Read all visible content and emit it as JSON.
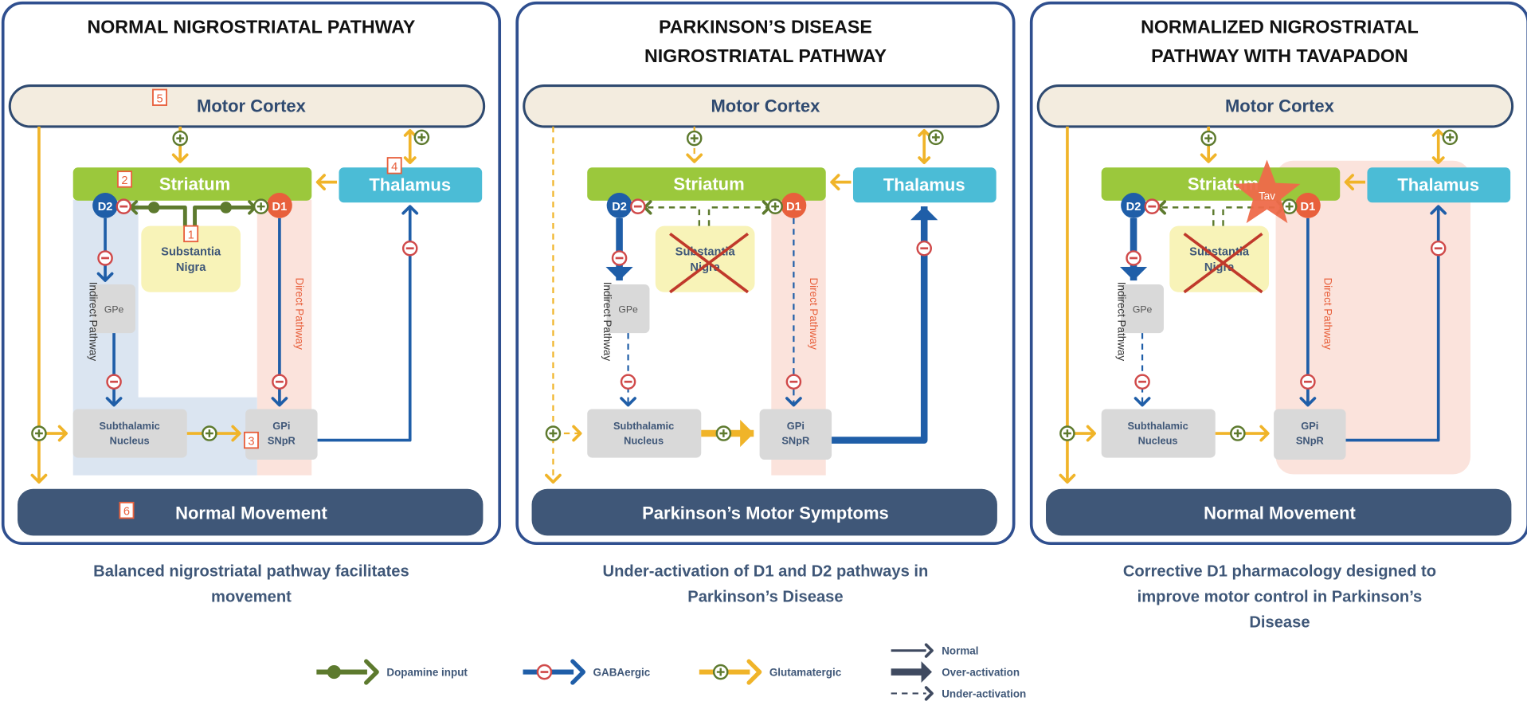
{
  "colors": {
    "frame": "#2f4f8f",
    "navy": "#3f5778",
    "gaba_blue": "#1f5ea8",
    "glutamate_yellow": "#f0b429",
    "dopamine_green": "#5d7a2e",
    "striatum_green": "#9bc83c",
    "thalamus_cyan": "#4bbcd6",
    "d1_orange": "#e8603c",
    "cortex_fill": "#f3ecdf",
    "indirect_band": "#dbe5f1",
    "direct_band": "#fbe3dc",
    "nigra_fill": "#f8f3b8",
    "nucleus_gray": "#d9d9d9"
  },
  "labels": {
    "motor_cortex": "Motor Cortex",
    "striatum": "Striatum",
    "thalamus": "Thalamus",
    "d1": "D1",
    "d2": "D2",
    "substantia_nigra": [
      "Substantia",
      "Nigra"
    ],
    "gpe": "GPe",
    "subthalamic_nucleus": [
      "Subthalamic",
      "Nucleus"
    ],
    "gpi_snpr": [
      "GPi",
      "SNpR"
    ],
    "indirect_pathway": "Indirect Pathway",
    "direct_pathway": "Direct Pathway",
    "tav": "Tav"
  },
  "panels": [
    {
      "title": [
        "NORMAL NIGROSTRIATAL PATHWAY"
      ],
      "outcome": "Normal Movement",
      "caption": [
        "Balanced nigrostriatal pathway facilitates",
        "movement"
      ],
      "markers": [
        "1",
        "2",
        "3",
        "4",
        "5",
        "6"
      ]
    },
    {
      "title": [
        "PARKINSON’S DISEASE",
        "NIGROSTRIATAL PATHWAY"
      ],
      "outcome": "Parkinson’s Motor Symptoms",
      "caption": [
        "Under-activation of D1 and D2 pathways in",
        "Parkinson’s Disease"
      ],
      "markers": []
    },
    {
      "title": [
        "NORMALIZED NIGROSTRIATAL",
        "PATHWAY WITH TAVAPADON"
      ],
      "outcome": "Normal Movement",
      "caption": [
        "Corrective D1 pharmacology designed to",
        "improve motor control in Parkinson’s",
        "Disease"
      ],
      "markers": []
    }
  ],
  "legend": {
    "types": [
      {
        "label": "Dopamine input",
        "icon": "dopamine-arrow-icon"
      },
      {
        "label": "GABAergic",
        "icon": "gaba-inhibitory-arrow-icon"
      },
      {
        "label": "Glutamatergic",
        "icon": "glutamate-excitatory-arrow-icon"
      }
    ],
    "strengths": [
      {
        "label": "Normal",
        "icon": "thin-arrow-icon"
      },
      {
        "label": "Over-activation",
        "icon": "thick-arrow-icon"
      },
      {
        "label": "Under-activation",
        "icon": "dashed-arrow-icon"
      }
    ]
  }
}
